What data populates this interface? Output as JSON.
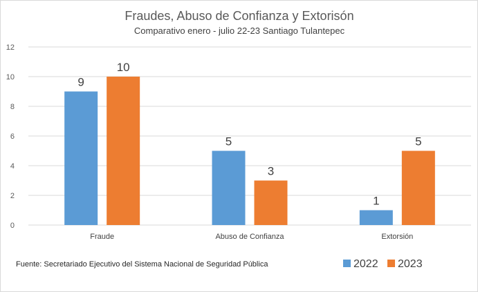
{
  "chart_data": {
    "type": "bar",
    "title": "Fraudes, Abuso de Confianza y Extorisón",
    "subtitle": "Comparativo enero  - julio 22-23 Santiago Tulantepec",
    "categories": [
      "Fraude",
      "Abuso de Confianza",
      "Extorsión"
    ],
    "series": [
      {
        "name": "2022",
        "values": [
          9,
          5,
          1
        ],
        "color": "#5b9bd5"
      },
      {
        "name": "2023",
        "values": [
          10,
          3,
          5
        ],
        "color": "#ed7d31"
      }
    ],
    "ylim": [
      0,
      12
    ],
    "yticks": [
      0,
      2,
      4,
      6,
      8,
      10,
      12
    ],
    "grid": true,
    "legend": "bottom-right",
    "source": "Fuente:  Secretariado Ejecutivo del Sistema Nacional de Seguridad Pública"
  }
}
